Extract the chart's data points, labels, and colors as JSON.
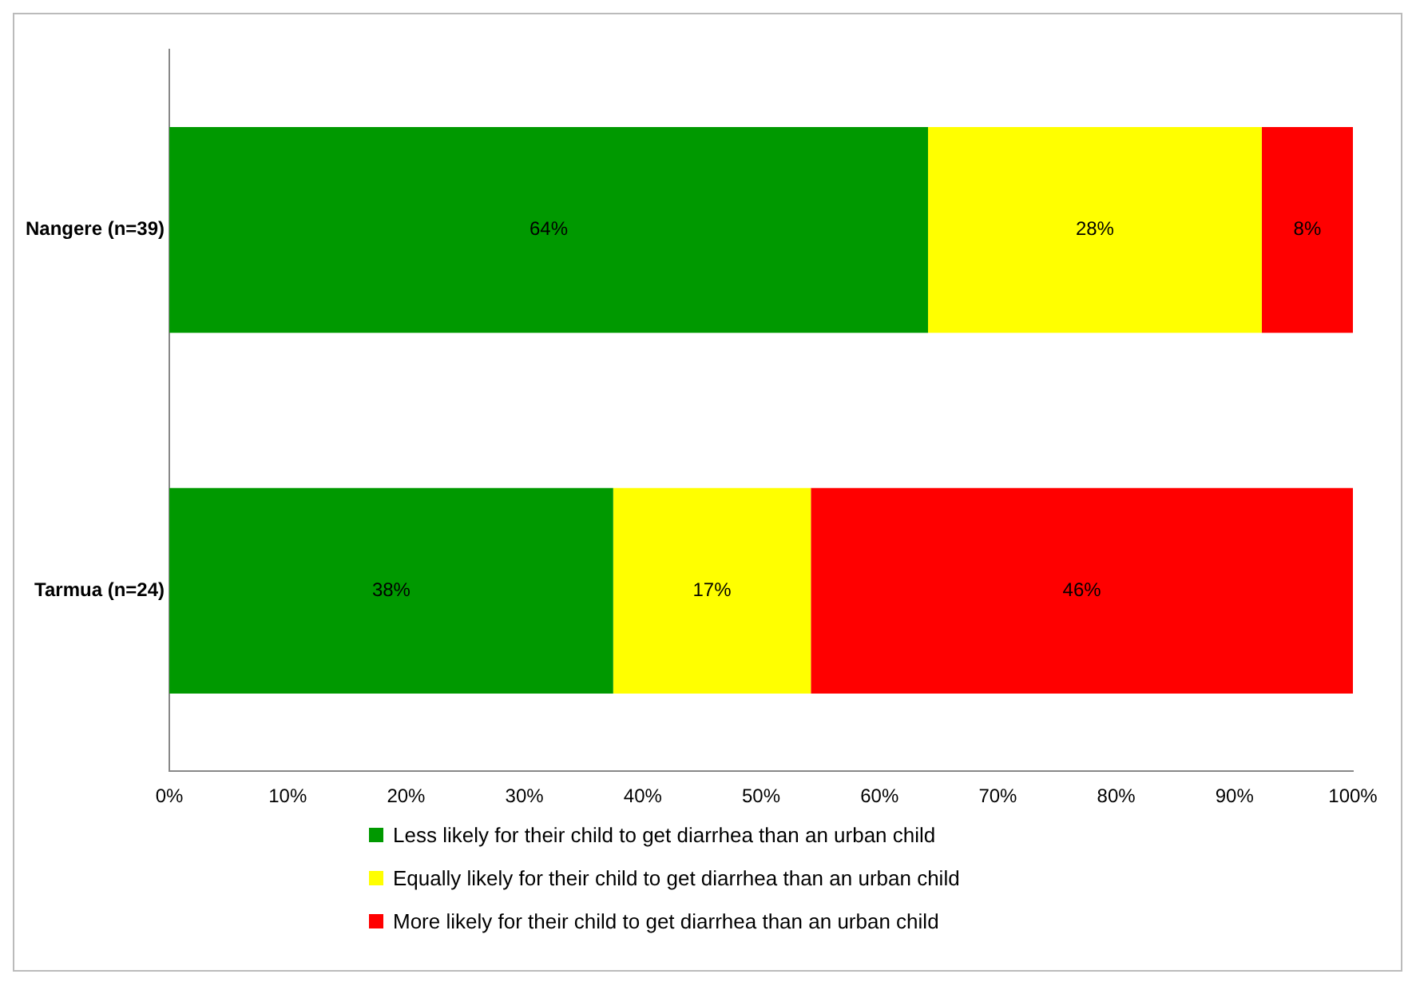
{
  "chart_data": {
    "type": "bar",
    "orientation": "horizontal",
    "stacked": true,
    "categories": [
      "Nangere (n=39)",
      "Tarmua (n=24)"
    ],
    "series": [
      {
        "name": "Less likely for their child to get diarrhea than an urban child",
        "color": "#009900",
        "values": [
          64.1,
          37.5
        ],
        "value_labels": [
          "64%",
          "38%"
        ]
      },
      {
        "name": "Equally likely for their child to get diarrhea than an urban child",
        "color": "#ffff00",
        "values": [
          28.2,
          16.7
        ],
        "value_labels": [
          "28%",
          "17%"
        ]
      },
      {
        "name": "More likely for their child to get diarrhea than an urban child",
        "color": "#ff0000",
        "values": [
          7.7,
          45.8
        ],
        "value_labels": [
          "8%",
          "46%"
        ]
      }
    ],
    "xlim": [
      0,
      100
    ],
    "xticks": [
      {
        "value": 0,
        "label": "0%"
      },
      {
        "value": 10,
        "label": "10%"
      },
      {
        "value": 20,
        "label": "20%"
      },
      {
        "value": 30,
        "label": "30%"
      },
      {
        "value": 40,
        "label": "40%"
      },
      {
        "value": 50,
        "label": "50%"
      },
      {
        "value": 60,
        "label": "60%"
      },
      {
        "value": 70,
        "label": "70%"
      },
      {
        "value": 80,
        "label": "80%"
      },
      {
        "value": 90,
        "label": "90%"
      },
      {
        "value": 100,
        "label": "100%"
      }
    ],
    "grid": false,
    "legend": "bottom"
  }
}
